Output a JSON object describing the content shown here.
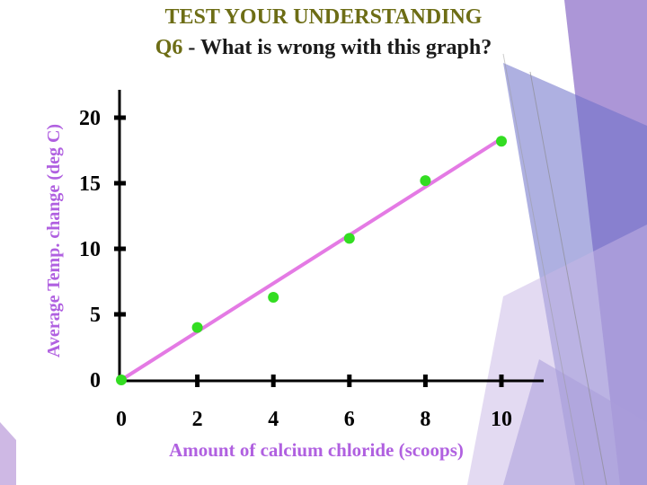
{
  "slide": {
    "title": "TEST YOUR UNDERSTANDING",
    "question_number": "Q6",
    "question_text": " - What is wrong with this graph?",
    "colors": {
      "title": "#6d6d15",
      "points": "#33dd22",
      "trendline": "#e47ae4",
      "axis_label": "#b060e0",
      "deco_purple": "#8b6cc4",
      "deco_blue": "#5a64c0"
    }
  },
  "chart_data": {
    "type": "scatter",
    "xlabel": "Amount of calcium chloride (scoops)",
    "ylabel": "Average Temp. change (deg C)",
    "x_ticks": [
      0,
      2,
      4,
      6,
      8,
      10
    ],
    "y_ticks": [
      0,
      5,
      10,
      15,
      20
    ],
    "grid": false,
    "series": [
      {
        "x": [
          0,
          2,
          4,
          6,
          8,
          10
        ],
        "y": [
          0,
          4,
          6.3,
          10.8,
          15.2,
          18.2
        ]
      }
    ],
    "trendline": {
      "x": [
        0,
        10
      ],
      "y": [
        0,
        18.4
      ]
    }
  }
}
